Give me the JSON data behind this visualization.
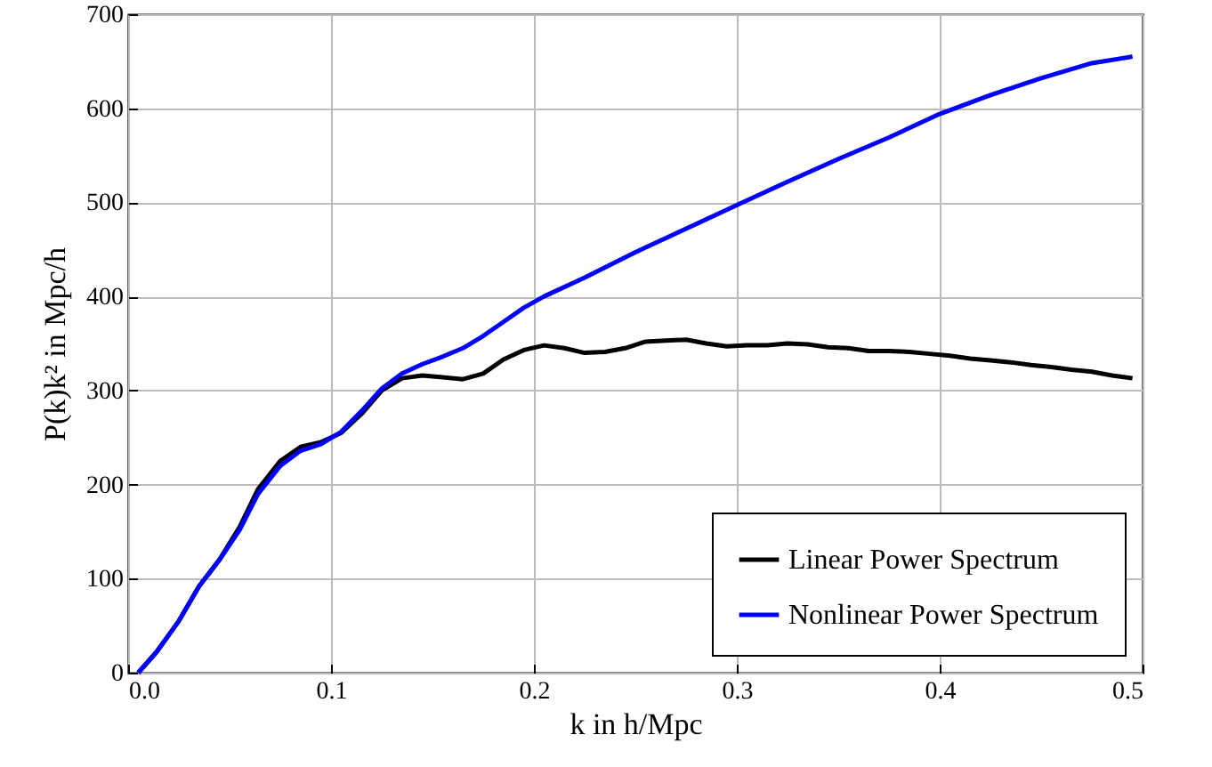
{
  "chart_data": {
    "type": "line",
    "xlabel": "k in h/Mpc",
    "ylabel": "P(k)k² in Mpc/h",
    "xlim": [
      0,
      0.5
    ],
    "ylim": [
      0,
      700
    ],
    "xticks": [
      {
        "value": 0,
        "label": "0.0"
      },
      0.1,
      0.2,
      0.3,
      0.4,
      0.5
    ],
    "yticks": [
      0,
      100,
      200,
      300,
      400,
      500,
      600,
      700
    ],
    "grid": true,
    "legend": "bottom right",
    "line_style": "solid",
    "marker": "none",
    "series": [
      {
        "name": "Linear Power Spectrum",
        "color": "#000000",
        "x": [
          0.005,
          0.014,
          0.025,
          0.035,
          0.045,
          0.055,
          0.064,
          0.075,
          0.085,
          0.095,
          0.105,
          0.115,
          0.125,
          0.135,
          0.145,
          0.155,
          0.165,
          0.175,
          0.185,
          0.195,
          0.205,
          0.215,
          0.225,
          0.235,
          0.245,
          0.255,
          0.265,
          0.275,
          0.285,
          0.295,
          0.305,
          0.315,
          0.325,
          0.335,
          0.345,
          0.355,
          0.365,
          0.375,
          0.385,
          0.395,
          0.405,
          0.415,
          0.425,
          0.435,
          0.445,
          0.455,
          0.465,
          0.475,
          0.485,
          0.495
        ],
        "values": [
          0,
          22,
          55,
          92,
          120,
          155,
          195,
          225,
          240,
          245,
          255,
          275,
          300,
          313,
          316,
          314,
          312,
          318,
          333,
          343,
          348,
          345,
          340,
          341,
          345,
          352,
          353,
          354,
          350,
          347,
          348,
          348,
          350,
          349,
          346,
          345,
          342,
          342,
          341,
          339,
          337,
          334,
          332,
          330,
          327,
          325,
          322,
          320,
          316,
          313
        ]
      },
      {
        "name": "Nonlinear Power Spectrum",
        "color": "#0000ff",
        "x": [
          0.005,
          0.014,
          0.025,
          0.035,
          0.045,
          0.055,
          0.064,
          0.075,
          0.085,
          0.095,
          0.105,
          0.115,
          0.125,
          0.135,
          0.145,
          0.155,
          0.165,
          0.175,
          0.185,
          0.195,
          0.205,
          0.225,
          0.25,
          0.275,
          0.3,
          0.325,
          0.35,
          0.375,
          0.4,
          0.425,
          0.45,
          0.475,
          0.495
        ],
        "values": [
          0,
          22,
          55,
          92,
          120,
          152,
          190,
          220,
          236,
          243,
          256,
          278,
          302,
          318,
          328,
          336,
          345,
          358,
          373,
          388,
          400,
          420,
          447,
          472,
          497,
          522,
          546,
          569,
          594,
          614,
          632,
          648,
          655
        ]
      }
    ]
  }
}
